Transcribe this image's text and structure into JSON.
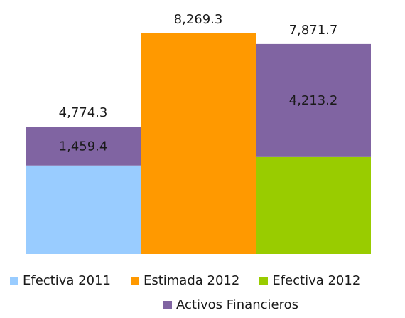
{
  "chart_data": {
    "type": "bar",
    "subtype": "stacked",
    "columns": [
      {
        "total_label": "4,774.3",
        "segments": [
          {
            "series": "Efectiva 2011",
            "value": 3314.9
          },
          {
            "series": "Activos Financieros",
            "value": 1459.4,
            "label": "1,459.4"
          }
        ]
      },
      {
        "total_label": "8,269.3",
        "segments": [
          {
            "series": "Estimada 2012",
            "value": 8269.3
          }
        ]
      },
      {
        "total_label": "7,871.7",
        "segments": [
          {
            "series": "Efectiva 2012",
            "value": 3658.5
          },
          {
            "series": "Activos Financieros",
            "value": 4213.2,
            "label": "4,213.2"
          }
        ]
      }
    ],
    "series": [
      {
        "name": "Efectiva 2011",
        "color": "#99ccff"
      },
      {
        "name": "Estimada 2012",
        "color": "#ff9900"
      },
      {
        "name": "Efectiva 2012",
        "color": "#99cc00"
      },
      {
        "name": "Activos Financieros",
        "color": "#8064a2"
      }
    ],
    "ylim": [
      0,
      8269.3
    ],
    "grid": false,
    "legend_position": "bottom"
  },
  "legend": {
    "items": [
      {
        "label": "Efectiva 2011",
        "color": "#99ccff"
      },
      {
        "label": "Estimada 2012",
        "color": "#ff9900"
      },
      {
        "label": "Efectiva 2012",
        "color": "#99cc00"
      },
      {
        "label": "Activos Financieros",
        "color": "#8064a2"
      }
    ]
  }
}
